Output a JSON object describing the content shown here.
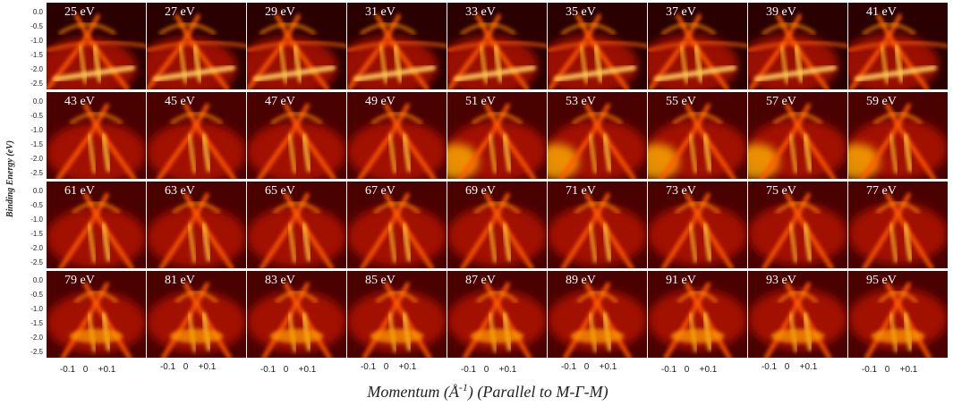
{
  "figure": {
    "panels": [
      "25 eV",
      "27 eV",
      "29 eV",
      "31 eV",
      "33 eV",
      "35 eV",
      "37 eV",
      "39 eV",
      "41 eV",
      "43 eV",
      "45 eV",
      "47 eV",
      "49 eV",
      "51 eV",
      "53 eV",
      "55 eV",
      "57 eV",
      "59 eV",
      "61 eV",
      "63 eV",
      "65 eV",
      "67 eV",
      "69 eV",
      "71 eV",
      "73 eV",
      "75 eV",
      "77 eV",
      "79 eV",
      "81 eV",
      "83 eV",
      "85 eV",
      "87 eV",
      "89 eV",
      "91 eV",
      "93 eV",
      "95 eV"
    ],
    "y_ticks": [
      "0.0",
      "-0.5",
      "-1.0",
      "-1.5",
      "-2.0",
      "-2.5"
    ],
    "x_ticks": [
      "-0.1",
      "0",
      "+0.1"
    ],
    "y_title": "Binding Energy (eV)",
    "x_title": [
      "Momentum (Å",
      "-1",
      ") (Parallel to M-Γ-M)"
    ]
  }
}
